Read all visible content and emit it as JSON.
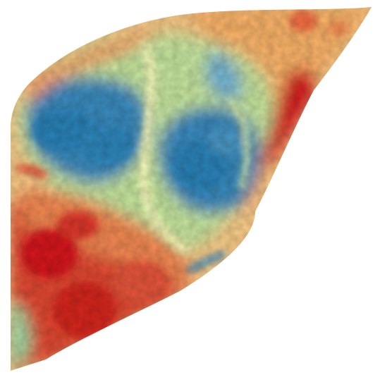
{
  "map": {
    "kind": "raster-heatmap",
    "background": "#ffffff",
    "palette": {
      "blue": "#2b83ba",
      "light_blue": "#6aaed6",
      "teal_light": "#abdda4",
      "yellow": "#ffffbf",
      "orange_light": "#fdae61",
      "orange": "#f46d43",
      "red": "#d7191c"
    }
  }
}
